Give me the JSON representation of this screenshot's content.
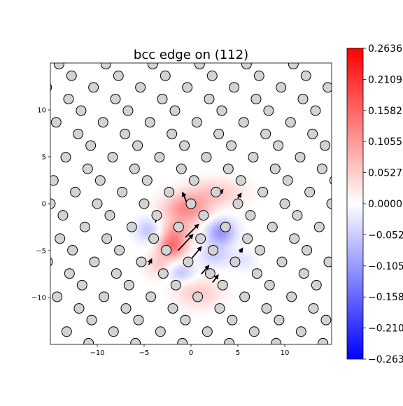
{
  "chart_data": {
    "type": "heatmap",
    "title": "bcc edge on (112)",
    "xlabel": "",
    "ylabel": "",
    "xlim": [
      -15,
      15
    ],
    "ylim": [
      -15,
      15
    ],
    "xticks": [
      -10,
      -5,
      0,
      5,
      10
    ],
    "yticks": [
      10,
      5,
      0,
      -5,
      -10
    ],
    "xtick_labels": [
      "−10",
      "−5",
      "0",
      "5",
      "10"
    ],
    "ytick_labels": [
      "10",
      "5",
      "0",
      "−5",
      "−10"
    ],
    "grid": false,
    "colormap": {
      "name": "bwr",
      "min": -0.2636,
      "max": 0.2636,
      "low_color": "#0000ff",
      "mid_color": "#ffffff",
      "high_color": "#ff0000",
      "tick_values": [
        0.2636,
        0.2109,
        0.1582,
        0.1055,
        0.0527,
        0.0,
        -0.0527,
        -0.1055,
        -0.1582,
        -0.2109,
        -0.2636
      ],
      "tick_labels": [
        "0.2636",
        "0.2109",
        "0.1582",
        "0.1055",
        "0.0527",
        "0.0000",
        "−0.0527",
        "−0.1055",
        "−0.1582",
        "−0.2109",
        "−0.2636"
      ]
    },
    "field_lobes": [
      {
        "x": -0.5,
        "y": -0.5,
        "sx": 2.4,
        "sy": 1.5,
        "value": 0.12
      },
      {
        "x": -2.0,
        "y": -4.5,
        "sx": 1.5,
        "sy": 1.3,
        "value": 0.14
      },
      {
        "x": -1.5,
        "y": -2.8,
        "sx": 1.6,
        "sy": 1.2,
        "value": 0.08
      },
      {
        "x": 2.5,
        "y": 1.2,
        "sx": 3.0,
        "sy": 1.4,
        "value": 0.06
      },
      {
        "x": 0.8,
        "y": -9.5,
        "sx": 2.4,
        "sy": 1.5,
        "value": 0.055
      },
      {
        "x": -3.5,
        "y": -6.5,
        "sx": 1.4,
        "sy": 1.2,
        "value": 0.05
      },
      {
        "x": 3.2,
        "y": -3.0,
        "sx": 1.5,
        "sy": 1.4,
        "value": -0.11
      },
      {
        "x": -4.5,
        "y": -2.8,
        "sx": 1.4,
        "sy": 1.3,
        "value": -0.06
      },
      {
        "x": -1.0,
        "y": -7.3,
        "sx": 1.4,
        "sy": 1.1,
        "value": -0.06
      },
      {
        "x": 2.5,
        "y": -5.5,
        "sx": 1.6,
        "sy": 1.2,
        "value": -0.05
      },
      {
        "x": 5.5,
        "y": -6.0,
        "sx": 1.3,
        "sy": 1.0,
        "value": -0.03
      }
    ],
    "atom_lattice": {
      "row_spacing": 1.24,
      "row_offset": 0.34,
      "period": 5.0,
      "radius": 0.52,
      "fill": "#d3d3d3",
      "edge": "#000000"
    },
    "displacement_arrows": [
      {
        "x": -1.4,
        "y": -5.0,
        "u": 1.6,
        "v": 1.7
      },
      {
        "x": -0.6,
        "y": -3.6,
        "u": 1.4,
        "v": 1.4
      },
      {
        "x": -0.4,
        "y": 0.0,
        "u": -0.5,
        "v": 1.2
      },
      {
        "x": 0.1,
        "y": -5.8,
        "u": 1.0,
        "v": 1.2
      },
      {
        "x": 1.1,
        "y": -7.5,
        "u": 0.8,
        "v": 0.9
      },
      {
        "x": 2.3,
        "y": -8.4,
        "u": 0.6,
        "v": 0.8
      },
      {
        "x": 2.9,
        "y": 0.9,
        "u": 0.5,
        "v": 0.6
      },
      {
        "x": 5.0,
        "y": 0.6,
        "u": 0.35,
        "v": 0.5
      },
      {
        "x": -3.8,
        "y": -2.0,
        "u": 0.25,
        "v": 0.7
      },
      {
        "x": -4.5,
        "y": -6.5,
        "u": 0.3,
        "v": 0.6
      },
      {
        "x": 5.2,
        "y": -5.2,
        "u": 0.3,
        "v": 0.45
      }
    ]
  }
}
